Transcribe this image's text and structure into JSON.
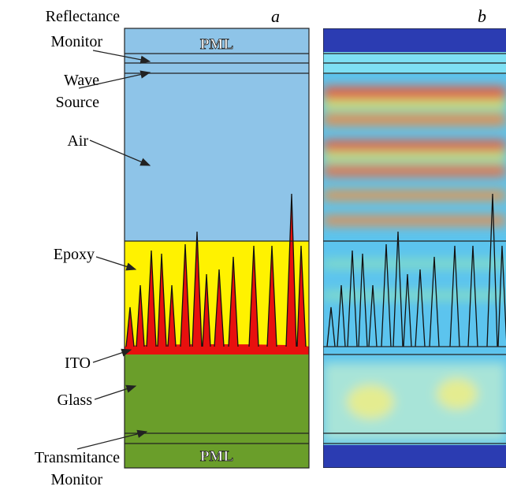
{
  "panel_a": {
    "label": "a",
    "pml_top": "PML",
    "pml_bottom": "PML"
  },
  "panel_b": {
    "label": "b"
  },
  "labels": [
    {
      "lines": [
        "Reflectance",
        "Monitor"
      ]
    },
    {
      "lines": [
        "Wave",
        "Source"
      ]
    },
    {
      "lines": [
        "Air"
      ]
    },
    {
      "lines": [
        "Epoxy"
      ]
    },
    {
      "lines": [
        "ITO"
      ]
    },
    {
      "lines": [
        "Glass"
      ]
    },
    {
      "lines": [
        "Transmitance",
        "Monitor"
      ]
    }
  ]
}
